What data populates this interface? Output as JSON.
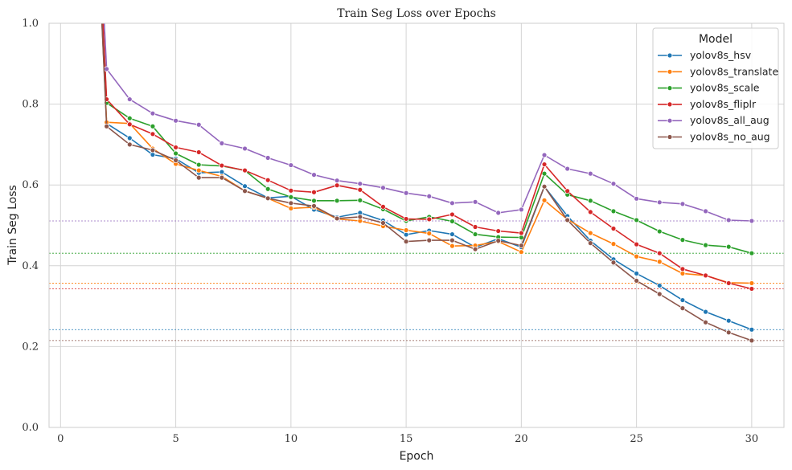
{
  "chart_data": {
    "type": "line",
    "title": "Train Seg Loss over Epochs",
    "xlabel": "Epoch",
    "ylabel": "Train Seg Loss",
    "xlim": [
      -0.5,
      31.4
    ],
    "ylim": [
      0.0,
      1.0
    ],
    "xticks": [
      0,
      5,
      10,
      15,
      20,
      25,
      30
    ],
    "yticks": [
      0.0,
      0.2,
      0.4,
      0.6,
      0.8,
      1.0
    ],
    "x": [
      1,
      2,
      3,
      4,
      5,
      6,
      7,
      8,
      9,
      10,
      11,
      12,
      13,
      14,
      15,
      16,
      17,
      18,
      19,
      20,
      21,
      22,
      23,
      24,
      25,
      26,
      27,
      28,
      29,
      30
    ],
    "grid": true,
    "legend": {
      "title": "Model",
      "position": "top-right"
    },
    "series": [
      {
        "name": "yolov8s_hsv",
        "color": "#1f77b4",
        "values": [
          2.0,
          0.752,
          0.716,
          0.675,
          0.665,
          0.63,
          0.632,
          0.597,
          0.568,
          0.572,
          0.539,
          0.52,
          0.531,
          0.512,
          0.477,
          0.487,
          0.478,
          0.446,
          0.467,
          0.446,
          0.596,
          0.523,
          0.462,
          0.416,
          0.381,
          0.351,
          0.315,
          0.286,
          0.264,
          0.242
        ]
      },
      {
        "name": "yolov8s_translate",
        "color": "#ff7f0e",
        "values": [
          2.0,
          0.755,
          0.752,
          0.69,
          0.652,
          0.636,
          0.621,
          0.585,
          0.567,
          0.542,
          0.545,
          0.516,
          0.511,
          0.498,
          0.488,
          0.48,
          0.449,
          0.45,
          0.46,
          0.434,
          0.562,
          0.515,
          0.481,
          0.454,
          0.423,
          0.41,
          0.381,
          0.376,
          0.358,
          0.357
        ]
      },
      {
        "name": "yolov8s_scale",
        "color": "#2ca02c",
        "values": [
          2.0,
          0.803,
          0.765,
          0.745,
          0.678,
          0.65,
          0.647,
          0.636,
          0.59,
          0.57,
          0.561,
          0.561,
          0.562,
          0.54,
          0.511,
          0.521,
          0.51,
          0.478,
          0.471,
          0.47,
          0.628,
          0.576,
          0.561,
          0.535,
          0.513,
          0.485,
          0.464,
          0.451,
          0.447,
          0.431
        ]
      },
      {
        "name": "yolov8s_fliplr",
        "color": "#d62728",
        "values": [
          2.0,
          0.812,
          0.75,
          0.726,
          0.693,
          0.681,
          0.648,
          0.636,
          0.612,
          0.586,
          0.582,
          0.599,
          0.588,
          0.546,
          0.516,
          0.515,
          0.527,
          0.496,
          0.486,
          0.481,
          0.651,
          0.585,
          0.533,
          0.492,
          0.453,
          0.431,
          0.392,
          0.376,
          0.357,
          0.343
        ]
      },
      {
        "name": "yolov8s_all_aug",
        "color": "#9467bd",
        "values": [
          2.0,
          0.887,
          0.812,
          0.777,
          0.759,
          0.749,
          0.703,
          0.69,
          0.667,
          0.649,
          0.625,
          0.611,
          0.603,
          0.593,
          0.58,
          0.572,
          0.555,
          0.558,
          0.531,
          0.539,
          0.674,
          0.64,
          0.628,
          0.603,
          0.566,
          0.557,
          0.553,
          0.535,
          0.513,
          0.511
        ]
      },
      {
        "name": "yolov8s_no_aug",
        "color": "#8c564b",
        "values": [
          2.0,
          0.745,
          0.7,
          0.686,
          0.661,
          0.618,
          0.618,
          0.585,
          0.567,
          0.555,
          0.548,
          0.517,
          0.521,
          0.506,
          0.46,
          0.463,
          0.463,
          0.441,
          0.462,
          0.45,
          0.596,
          0.513,
          0.456,
          0.408,
          0.363,
          0.33,
          0.295,
          0.26,
          0.235,
          0.215
        ]
      }
    ]
  }
}
